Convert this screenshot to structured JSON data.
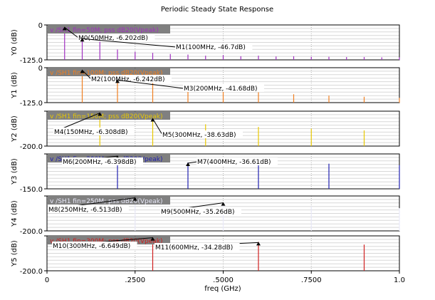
{
  "title": "Periodic Steady State Response",
  "chart_data": {
    "type": "bar",
    "title": "Periodic Steady State Response",
    "xlabel": "freq (GHz)",
    "xlim": [
      0,
      1.0
    ],
    "xticks": [
      "0",
      ".2500",
      ".5000",
      ".7500",
      "1.0"
    ],
    "grid": true,
    "panels": [
      {
        "id": "p0",
        "ylabel": "Y0 (dB)",
        "ylim": [
          -125,
          0
        ],
        "ytop": "0",
        "ybot": "-125.0",
        "color": "#a030c0",
        "legend": "v /SH1 fin=50M; pss dB20(Vpeak)",
        "x": [
          0.05,
          0.1,
          0.15,
          0.2,
          0.25,
          0.3,
          0.35,
          0.4,
          0.45,
          0.5,
          0.55,
          0.6,
          0.65,
          0.7,
          0.75,
          0.8,
          0.85,
          0.9,
          0.95,
          1.0
        ],
        "values": [
          -6.202,
          -46.7,
          -60,
          -88,
          -96,
          -100,
          -104,
          -106,
          -110,
          -108,
          -112,
          -110,
          -113,
          -112,
          -114,
          -114,
          -115,
          -115,
          -116,
          -116
        ],
        "markers": [
          {
            "label": "M0(50MHz, -6.202dB)",
            "x": 0.05,
            "y": -6.202
          },
          {
            "label": "M1(100MHz, -46.7dB)",
            "x": 0.1,
            "y": -46.7
          }
        ]
      },
      {
        "id": "p1",
        "ylabel": "Y1 (dB)",
        "ylim": [
          -125,
          0
        ],
        "ytop": "0",
        "ybot": "-125.0",
        "color": "#f07f20",
        "legend": "v /SH1 fin=100M; pss dB20(Vpeak)",
        "x": [
          0.1,
          0.2,
          0.3,
          0.4,
          0.5,
          0.6,
          0.7,
          0.8,
          0.9,
          1.0
        ],
        "values": [
          -6.242,
          -41.68,
          -55,
          -70,
          -80,
          -88,
          -95,
          -100,
          -104,
          -108
        ],
        "markers": [
          {
            "label": "M2(100MHz, -6.242dB)",
            "x": 0.1,
            "y": -6.242
          },
          {
            "label": "M3(200MHz, -41.68dB)",
            "x": 0.2,
            "y": -41.68
          }
        ]
      },
      {
        "id": "p2",
        "ylabel": "Y2 (dB)",
        "ylim": [
          -200,
          0
        ],
        "ytop": "",
        "ybot": "-200.0",
        "color": "#e8c800",
        "legend": "v /SH1 fin=150M; pss dB20(Vpeak)",
        "x": [
          0.15,
          0.3,
          0.45,
          0.6,
          0.75,
          0.9
        ],
        "values": [
          -6.308,
          -38.63,
          -75,
          -90,
          -100,
          -110
        ],
        "markers": [
          {
            "label": "M4(150MHz, -6.308dB)",
            "x": 0.15,
            "y": -6.308
          },
          {
            "label": "M5(300MHz, -38.63dB)",
            "x": 0.3,
            "y": -38.63
          }
        ]
      },
      {
        "id": "p3",
        "ylabel": "Y3 (dB)",
        "ylim": [
          -150,
          0
        ],
        "ytop": "",
        "ybot": "-150.0",
        "color": "#2020b0",
        "legend": "v /SH1 fin=200M; pss dB20(Vpeak)",
        "x": [
          0.2,
          0.4,
          0.6,
          0.8,
          1.0
        ],
        "values": [
          -6.398,
          -36.61,
          -45,
          -42,
          -48
        ],
        "markers": [
          {
            "label": "M6(200MHz, -6.398dB)",
            "x": 0.2,
            "y": -6.398
          },
          {
            "label": "M7(400MHz, -36.61dB)",
            "x": 0.4,
            "y": -36.61
          }
        ]
      },
      {
        "id": "p4",
        "ylabel": "Y4 (dB)",
        "ylim": [
          -200,
          0
        ],
        "ytop": "",
        "ybot": "-200.0",
        "color": "#e8e8f8",
        "legend": "v /SH1 fin=250M; pss dB20(Vpeak)",
        "x": [
          0.25,
          0.5,
          0.75,
          1.0
        ],
        "values": [
          -6.513,
          -35.26,
          -60,
          -70
        ],
        "markers": [
          {
            "label": "M8(250MHz, -6.513dB)",
            "x": 0.25,
            "y": -6.513
          },
          {
            "label": "M9(500MHz, -35.26dB)",
            "x": 0.5,
            "y": -35.26
          }
        ]
      },
      {
        "id": "p5",
        "ylabel": "Y5 (dB)",
        "ylim": [
          -200,
          0
        ],
        "ytop": "",
        "ybot": "-200.0",
        "color": "#d02020",
        "legend": "v /SH1 fin=300M; pss dB20(Vpeak)",
        "x": [
          0.3,
          0.6,
          0.9
        ],
        "values": [
          -6.649,
          -34.28,
          -50
        ],
        "markers": [
          {
            "label": "M10(300MHz, -6.649dB)",
            "x": 0.3,
            "y": -6.649
          },
          {
            "label": "M11(600MHz, -34.28dB)",
            "x": 0.6,
            "y": -34.28
          }
        ]
      }
    ]
  }
}
